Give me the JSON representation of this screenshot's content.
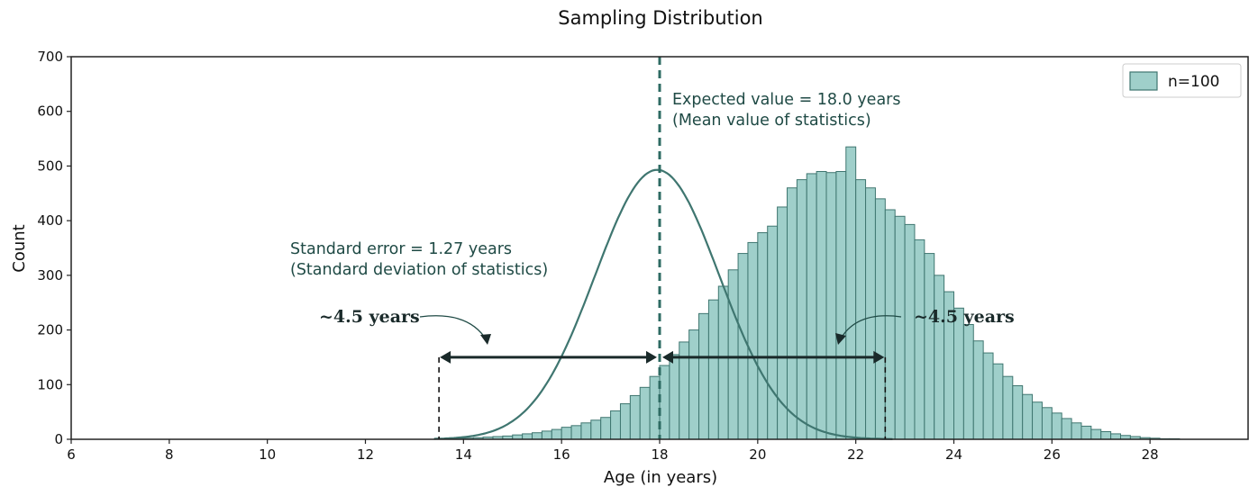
{
  "chart_data": {
    "type": "bar",
    "title": "Sampling Distribution",
    "xlabel": "Age (in years)",
    "ylabel": "Count",
    "xlim": [
      6,
      30
    ],
    "ylim": [
      0,
      700
    ],
    "x_ticks": [
      "6",
      "8",
      "10",
      "12",
      "14",
      "16",
      "18",
      "20",
      "22",
      "24",
      "26",
      "28"
    ],
    "y_ticks": [
      "0",
      "100",
      "200",
      "300",
      "400",
      "500",
      "600",
      "700"
    ],
    "grid": false,
    "legend": {
      "placement": "upper-right",
      "entries": [
        "n=100"
      ]
    },
    "colors": {
      "bar_fill": "#9fcfca",
      "bar_edge": "#3f7670",
      "kde": "#3f7670",
      "mean_line": "#2e6b63",
      "text": "#1f4a45",
      "arrow": "#1a2a2a"
    },
    "bin_width": 0.2,
    "bins_start": 13.6,
    "series": [
      {
        "name": "n=100",
        "values": [
          1,
          2,
          2,
          3,
          4,
          5,
          6,
          8,
          10,
          12,
          15,
          18,
          22,
          25,
          30,
          35,
          40,
          52,
          65,
          80,
          95,
          115,
          135,
          155,
          178,
          200,
          230,
          255,
          280,
          310,
          340,
          360,
          378,
          390,
          425,
          460,
          475,
          486,
          490,
          488,
          490,
          535,
          475,
          460,
          440,
          420,
          408,
          393,
          365,
          340,
          300,
          270,
          240,
          210,
          180,
          158,
          138,
          115,
          98,
          82,
          68,
          58,
          48,
          38,
          30,
          24,
          18,
          14,
          10,
          7,
          5,
          3,
          2,
          1,
          1,
          0
        ]
      }
    ],
    "kde": {
      "mean": 17.95,
      "sd": 1.27,
      "peak": 493
    },
    "annotations": {
      "expected_line1": "Expected value = 18.0 years",
      "expected_line2": "(Mean value of statistics)",
      "se_line1": "Standard error = 1.27 years",
      "se_line2": "(Standard deviation of statistics)",
      "left_span": "~4.5 years",
      "right_span": "~4.5 years",
      "mean_x": 18.0,
      "span_left_x": 13.5,
      "span_right_x": 22.6,
      "span_y": 150
    }
  }
}
